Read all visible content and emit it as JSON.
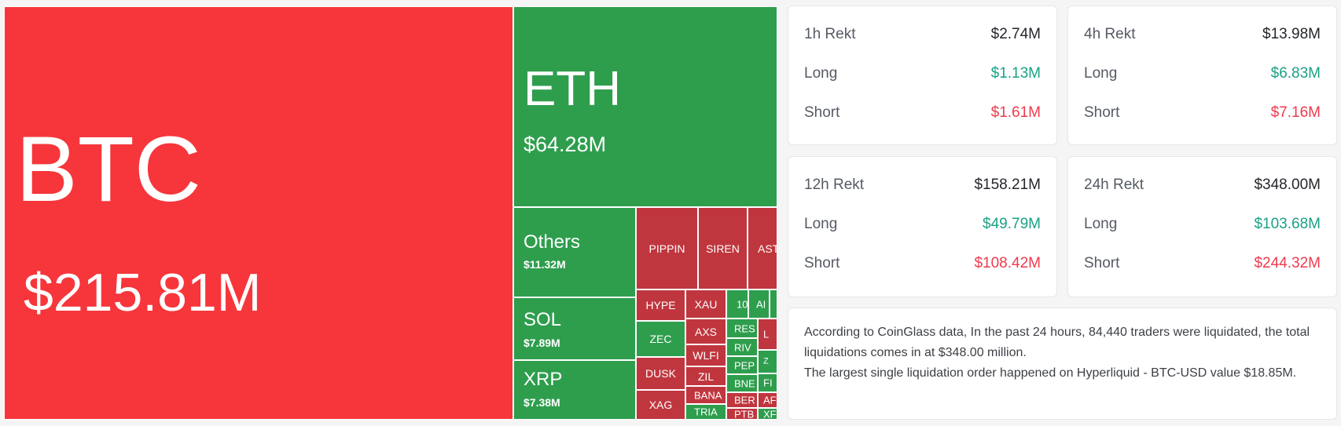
{
  "heatmap": {
    "tiles": [
      {
        "symbol": "BTC",
        "value": "$215.81M",
        "color": "#f6363b"
      },
      {
        "symbol": "ETH",
        "value": "$64.28M",
        "color": "#2e9e4d"
      },
      {
        "symbol": "Others",
        "value": "$11.32M",
        "color": "#2e9e4d"
      },
      {
        "symbol": "SOL",
        "value": "$7.89M",
        "color": "#2e9e4d"
      },
      {
        "symbol": "XRP",
        "value": "$7.38M",
        "color": "#2e9e4d"
      },
      {
        "symbol": "PIPPIN",
        "color": "#c0363e"
      },
      {
        "symbol": "SIREN",
        "color": "#c0363e"
      },
      {
        "symbol": "ASTE",
        "color": "#c0363e"
      },
      {
        "symbol": "HYPE",
        "color": "#c0363e"
      },
      {
        "symbol": "XAU",
        "color": "#c0363e"
      },
      {
        "symbol": "10",
        "color": "#2e9e4d"
      },
      {
        "symbol": "AI",
        "color": "#2e9e4d"
      },
      {
        "symbol": "ZEC",
        "color": "#2e9e4d"
      },
      {
        "symbol": "AXS",
        "color": "#c0363e"
      },
      {
        "symbol": "RES",
        "color": "#2e9e4d"
      },
      {
        "symbol": "L",
        "color": "#c0363e"
      },
      {
        "symbol": "WLFI",
        "color": "#c0363e"
      },
      {
        "symbol": "RIV",
        "color": "#2e9e4d"
      },
      {
        "symbol": "Z",
        "color": "#2e9e4d"
      },
      {
        "symbol": "DUSK",
        "color": "#c0363e"
      },
      {
        "symbol": "ZIL",
        "color": "#c0363e"
      },
      {
        "symbol": "PEP",
        "color": "#2e9e4d"
      },
      {
        "symbol": "BNE",
        "color": "#2e9e4d"
      },
      {
        "symbol": "FI",
        "color": "#2e9e4d"
      },
      {
        "symbol": "XAG",
        "color": "#c0363e"
      },
      {
        "symbol": "BANA",
        "color": "#c0363e"
      },
      {
        "symbol": "BER",
        "color": "#c0363e"
      },
      {
        "symbol": "AF",
        "color": "#c0363e"
      },
      {
        "symbol": "TRIA",
        "color": "#2e9e4d"
      },
      {
        "symbol": "PTB",
        "color": "#c0363e"
      },
      {
        "symbol": "XF",
        "color": "#2e9e4d"
      }
    ]
  },
  "stats": [
    {
      "title": "1h Rekt",
      "total": "$2.74M",
      "long_label": "Long",
      "long": "$1.13M",
      "short_label": "Short",
      "short": "$1.61M"
    },
    {
      "title": "4h Rekt",
      "total": "$13.98M",
      "long_label": "Long",
      "long": "$6.83M",
      "short_label": "Short",
      "short": "$7.16M"
    },
    {
      "title": "12h Rekt",
      "total": "$158.21M",
      "long_label": "Long",
      "long": "$49.79M",
      "short_label": "Short",
      "short": "$108.42M"
    },
    {
      "title": "24h Rekt",
      "total": "$348.00M",
      "long_label": "Long",
      "long": "$103.68M",
      "short_label": "Short",
      "short": "$244.32M"
    }
  ],
  "summary": {
    "line1": "According to CoinGlass data, In the past 24 hours, 84,440 traders were liquidated, the total liquidations comes in at $348.00 million.",
    "line2": "The largest single liquidation order happened on Hyperliquid - BTC-USD value $18.85M."
  },
  "colors": {
    "long": "#1aa186",
    "short": "#ee3a4d",
    "heat_red": "#f6363b",
    "heat_dark_red": "#c0363e",
    "heat_green": "#2e9e4d"
  }
}
